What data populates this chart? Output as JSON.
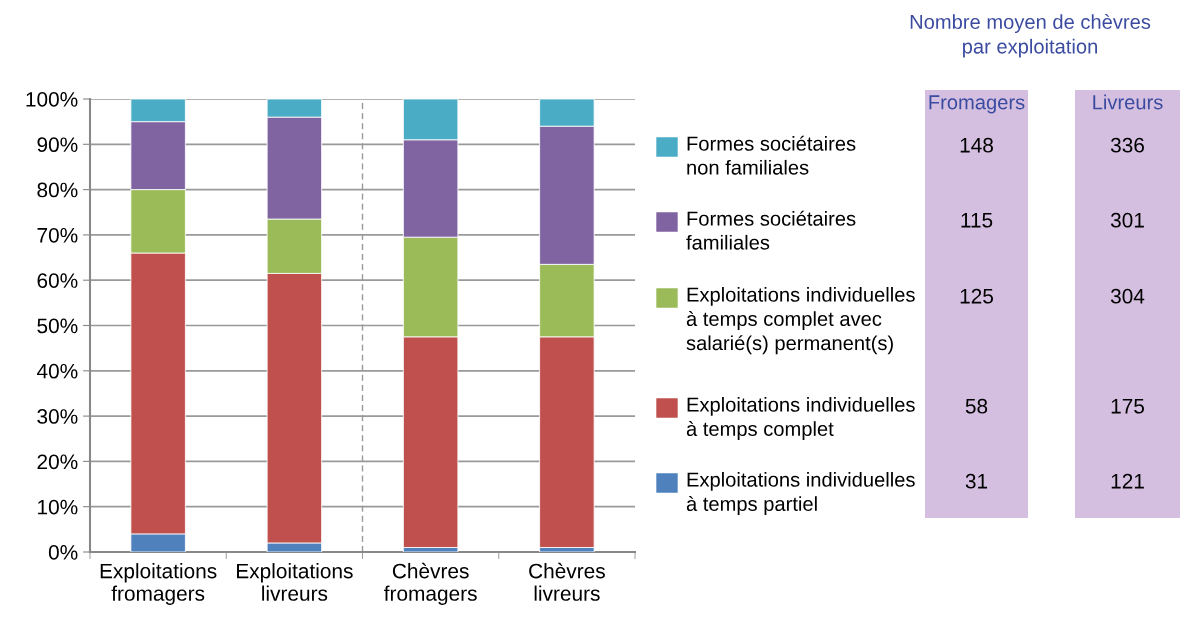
{
  "chart_data": [
    {
      "type": "bar",
      "stacked": true,
      "categories": [
        "Exploitations\nfromagers",
        "Exploitations\nlivreurs",
        "Chèvres\nfromagers",
        "Chèvres\nlivreurs"
      ],
      "series": [
        {
          "name": "Exploitations individuelles\nà temps partiel",
          "color": "#4f81bd",
          "values": [
            4,
            2,
            1,
            1
          ]
        },
        {
          "name": "Exploitations individuelles\nà temps complet",
          "color": "#c0504d",
          "values": [
            62,
            59.5,
            46.5,
            46.5
          ]
        },
        {
          "name": "Exploitations individuelles\nà temps complet avec\nsalarié(s) permanent(s)",
          "color": "#9bbb59",
          "values": [
            14,
            12,
            22,
            16
          ]
        },
        {
          "name": "Formes sociétaires\nfamiliales",
          "color": "#8064a2",
          "values": [
            15,
            22.5,
            21.5,
            30.5
          ]
        },
        {
          "name": "Formes sociétaires\nnon familiales",
          "color": "#4bacc6",
          "values": [
            5,
            4,
            9,
            6
          ]
        }
      ],
      "ylim": [
        0,
        100
      ],
      "yticks": [
        {
          "value": 0,
          "label": "0%"
        },
        {
          "value": 10,
          "label": "10%"
        },
        {
          "value": 20,
          "label": "20%"
        },
        {
          "value": 30,
          "label": "30%"
        },
        {
          "value": 40,
          "label": "40%"
        },
        {
          "value": 50,
          "label": "50%"
        },
        {
          "value": 60,
          "label": "60%"
        },
        {
          "value": 70,
          "label": "70%"
        },
        {
          "value": 80,
          "label": "80%"
        },
        {
          "value": 90,
          "label": "90%"
        },
        {
          "value": 100,
          "label": "100%"
        }
      ],
      "grid": "y",
      "legend": "right"
    },
    {
      "type": "other",
      "title": "Nombre moyen de chèvres\npar exploitation",
      "color": "#d5bfe0",
      "annotations": [
        "Fromagers",
        "Livreurs",
        "148",
        "336",
        "115",
        "301",
        "125",
        "304",
        "58",
        "175",
        "31",
        "121"
      ]
    }
  ]
}
